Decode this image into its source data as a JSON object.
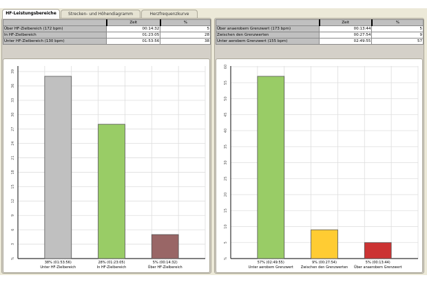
{
  "tabs": [
    "HF-Leistungsbereiche",
    "Strecken- und Höhendiagramm",
    "Herzfrequenzkurve"
  ],
  "left": {
    "headers": [
      "",
      "Zeit",
      "%"
    ],
    "rows": [
      [
        "Über HF-Zielbereich (172 bpm)",
        "00:14:32",
        "5"
      ],
      [
        "In HF-Zielbereich",
        "01:23:05",
        "28"
      ],
      [
        "Unter HF-Zielbereich (130 bpm)",
        "01:53:56",
        "38"
      ]
    ]
  },
  "right": {
    "headers": [
      "",
      "Zeit",
      "%"
    ],
    "rows": [
      [
        "Über anaerobem Grenzwert (173 bpm)",
        "00:13:44",
        "5"
      ],
      [
        "Zwischen den Grenzwerten",
        "00:27:54",
        "9"
      ],
      [
        "Unter aerobem Grenzwert (155 bpm)",
        "02:49:55",
        "57"
      ]
    ]
  },
  "chart_data": [
    {
      "type": "bar",
      "ylabel": "%",
      "ylim": [
        0,
        39
      ],
      "yticks": [
        "%",
        "3",
        "6",
        "9",
        "12",
        "15",
        "18",
        "21",
        "24",
        "27",
        "30",
        "33",
        "36",
        "39"
      ],
      "categories": [
        "Unter HF-Zielbereich",
        "In HF-Zielbereich",
        "Über HF-Zielbereich"
      ],
      "value_labels": [
        "38% (01:53:56)",
        "28% (01:23:05)",
        "5% (00:14:32)"
      ],
      "values": [
        38,
        28,
        5
      ],
      "colors": [
        "#c0c0c0",
        "#99cc66",
        "#996666"
      ]
    },
    {
      "type": "bar",
      "ylabel": "%",
      "ylim": [
        0,
        60
      ],
      "yticks": [
        "%",
        "5",
        "10",
        "15",
        "20",
        "25",
        "30",
        "35",
        "40",
        "45",
        "50",
        "55",
        "60"
      ],
      "categories": [
        "Unter aerobem Grenzwert",
        "Zwischen den Grenzwerten",
        "Über anaerobem Grenzwert"
      ],
      "value_labels": [
        "57% (02:49:55)",
        "9% (00:27:54)",
        "5% (00:13:44)"
      ],
      "values": [
        57,
        9,
        5
      ],
      "colors": [
        "#99cc66",
        "#ffcc33",
        "#cc3333"
      ]
    }
  ]
}
